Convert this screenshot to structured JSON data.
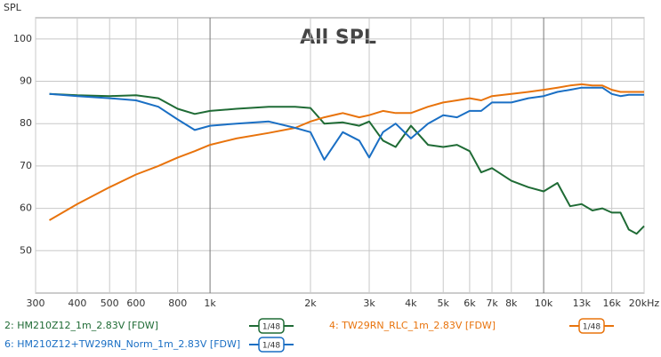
{
  "chart_data": {
    "type": "line",
    "title": "All SPL",
    "y_label": "SPL",
    "xscale": "log",
    "grid": true,
    "xlim": [
      300,
      20000
    ],
    "ylim": [
      40,
      105
    ],
    "yticks": [
      50,
      60,
      70,
      80,
      90,
      100
    ],
    "xticks": [
      300,
      400,
      500,
      600,
      800,
      {
        "value": 1000,
        "label": "1k"
      },
      {
        "value": 2000,
        "label": "2k"
      },
      {
        "value": 3000,
        "label": "3k"
      },
      {
        "value": 4000,
        "label": "4k"
      },
      {
        "value": 5000,
        "label": "5k"
      },
      {
        "value": 6000,
        "label": "6k"
      },
      {
        "value": 7000,
        "label": "7k"
      },
      {
        "value": 8000,
        "label": "8k"
      },
      {
        "value": 10000,
        "label": "10k"
      },
      {
        "value": 13000,
        "label": "13k"
      },
      {
        "value": 16000,
        "label": "16k"
      },
      {
        "value": 20000,
        "label": "20kHz"
      }
    ],
    "x": [
      330,
      400,
      500,
      600,
      700,
      800,
      900,
      1000,
      1200,
      1500,
      1800,
      2000,
      2200,
      2500,
      2800,
      3000,
      3300,
      3600,
      4000,
      4500,
      5000,
      5500,
      6000,
      6500,
      7000,
      8000,
      9000,
      10000,
      11000,
      12000,
      13000,
      14000,
      15000,
      16000,
      17000,
      18000,
      19000,
      20000
    ],
    "series": [
      {
        "name": "2: HM210Z12_1m_2.83V [FDW]",
        "color": "#1f6b35",
        "smoothing": "1/48",
        "values": [
          87,
          86.7,
          86.5,
          86.7,
          86,
          83.5,
          82.3,
          83,
          83.5,
          84,
          84,
          83.7,
          80,
          80.3,
          79.5,
          80.5,
          76,
          74.5,
          79.5,
          75,
          74.5,
          75,
          73.5,
          68.5,
          69.5,
          66.5,
          65,
          64,
          66,
          60.5,
          61,
          59.5,
          60,
          59,
          59,
          55,
          54,
          55.8
        ]
      },
      {
        "name": "4: TW29RN_RLC_1m_2.83V [FDW]",
        "color": "#e8730c",
        "smoothing": "1/48",
        "values": [
          57.2,
          61,
          65,
          68,
          70,
          72,
          73.5,
          75,
          76.5,
          77.8,
          79,
          80.5,
          81.5,
          82.5,
          81.5,
          82,
          83,
          82.5,
          82.5,
          84,
          85,
          85.5,
          86,
          85.5,
          86.5,
          87,
          87.5,
          88,
          88.5,
          89,
          89.3,
          89,
          89,
          88,
          87.5,
          87.5,
          87.5,
          87.5
        ]
      },
      {
        "name": "6: HM210Z12+TW29RN_Norm_1m_2.83V [FDW]",
        "color": "#1a6fc4",
        "smoothing": "1/48",
        "values": [
          87,
          86.5,
          86,
          85.5,
          84,
          81,
          78.5,
          79.5,
          80,
          80.5,
          79,
          78,
          71.5,
          78,
          76,
          72,
          78,
          80,
          76.5,
          80,
          82,
          81.5,
          83,
          83,
          85,
          85,
          86,
          86.5,
          87.5,
          88,
          88.5,
          88.5,
          88.5,
          87,
          86.5,
          86.8,
          86.8,
          86.8
        ]
      }
    ]
  }
}
